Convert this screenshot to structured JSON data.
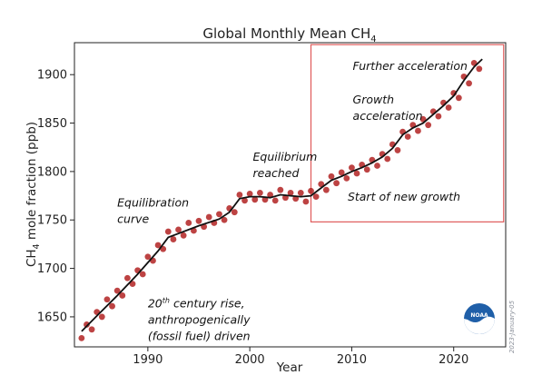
{
  "colors": {
    "monthly_points": "#b22222",
    "trend_line": "#111111",
    "highlight_box": "#e05a5a",
    "logo_blue": "#1f5fa8"
  },
  "logo": {
    "name": "noaa-logo",
    "text": "NOAA"
  },
  "credit": "2023-January-05",
  "chart_data": {
    "type": "line",
    "title": "Global Monthly Mean CH",
    "title_subscript": "4",
    "xlabel": "Year",
    "ylabel": "CH",
    "ylabel_subscript": "4",
    "ylabel_rest": " mole fraction (ppb)",
    "xlim": [
      1982.8,
      2025.1
    ],
    "ylim": [
      1619,
      1933
    ],
    "xticks": [
      1990,
      2000,
      2010,
      2020
    ],
    "yticks": [
      1650,
      1700,
      1750,
      1800,
      1850,
      1900
    ],
    "grid": false,
    "series": [
      {
        "name": "",
        "style": "points",
        "x": [
          1983.5,
          1984.0,
          1984.5,
          1985.0,
          1985.5,
          1986.0,
          1986.5,
          1987.0,
          1987.5,
          1988.0,
          1988.5,
          1989.0,
          1989.5,
          1990.0,
          1990.5,
          1991.0,
          1991.5,
          1992.0,
          1992.5,
          1993.0,
          1993.5,
          1994.0,
          1994.5,
          1995.0,
          1995.5,
          1996.0,
          1996.5,
          1997.0,
          1997.5,
          1998.0,
          1998.5,
          1999.0,
          1999.5,
          2000.0,
          2000.5,
          2001.0,
          2001.5,
          2002.0,
          2002.5,
          2003.0,
          2003.5,
          2004.0,
          2004.5,
          2005.0,
          2005.5,
          2006.0,
          2006.5,
          2007.0,
          2007.5,
          2008.0,
          2008.5,
          2009.0,
          2009.5,
          2010.0,
          2010.5,
          2011.0,
          2011.5,
          2012.0,
          2012.5,
          2013.0,
          2013.5,
          2014.0,
          2014.5,
          2015.0,
          2015.5,
          2016.0,
          2016.5,
          2017.0,
          2017.5,
          2018.0,
          2018.5,
          2019.0,
          2019.5,
          2020.0,
          2020.5,
          2021.0,
          2021.5,
          2022.0,
          2022.5
        ],
        "y": [
          1628,
          1642,
          1637,
          1655,
          1650,
          1668,
          1661,
          1677,
          1672,
          1690,
          1684,
          1698,
          1694,
          1712,
          1708,
          1724,
          1720,
          1738,
          1730,
          1740,
          1734,
          1747,
          1739,
          1749,
          1743,
          1753,
          1747,
          1756,
          1750,
          1762,
          1758,
          1776,
          1770,
          1777,
          1771,
          1778,
          1771,
          1776,
          1770,
          1781,
          1773,
          1778,
          1772,
          1778,
          1769,
          1780,
          1774,
          1787,
          1781,
          1795,
          1788,
          1799,
          1793,
          1804,
          1798,
          1807,
          1802,
          1812,
          1806,
          1818,
          1813,
          1828,
          1822,
          1841,
          1836,
          1848,
          1842,
          1854,
          1848,
          1862,
          1857,
          1871,
          1866,
          1881,
          1876,
          1898,
          1891,
          1912,
          1906
        ]
      },
      {
        "name": "",
        "style": "line",
        "x": [
          1983.5,
          1985,
          1987,
          1989,
          1991,
          1992,
          1993,
          1995,
          1997,
          1998,
          1999,
          2000,
          2001,
          2002,
          2003,
          2004,
          2005,
          2006,
          2007,
          2008,
          2009,
          2010,
          2011,
          2012,
          2013,
          2014,
          2015,
          2016,
          2017,
          2018,
          2019,
          2020,
          2021,
          2022,
          2022.8
        ],
        "y": [
          1635,
          1651,
          1672,
          1694,
          1718,
          1732,
          1736,
          1744,
          1751,
          1758,
          1772,
          1774,
          1774,
          1773,
          1776,
          1775,
          1774,
          1775,
          1783,
          1791,
          1795,
          1800,
          1804,
          1809,
          1815,
          1824,
          1838,
          1845,
          1850,
          1859,
          1868,
          1878,
          1894,
          1908,
          1916
        ]
      }
    ],
    "highlight_box": {
      "x": [
        2006.0,
        2024.9
      ],
      "y": [
        1748,
        1931
      ]
    },
    "annotations": [
      {
        "lines": [
          "Further acceleration"
        ],
        "x": 2010.1,
        "y": 1905
      },
      {
        "lines": [
          "Growth",
          "acceleration"
        ],
        "x": 2010.1,
        "y": 1870
      },
      {
        "lines": [
          "Equilibrium",
          "reached"
        ],
        "x": 2000.3,
        "y": 1811
      },
      {
        "lines": [
          "Start of new growth"
        ],
        "x": 2009.6,
        "y": 1770
      },
      {
        "lines": [
          "Equilibration",
          "curve"
        ],
        "x": 1987.0,
        "y": 1764
      },
      {
        "lines": [
          "20th century rise,",
          "anthropogenically",
          "(fossil fuel) driven"
        ],
        "x": 1990.0,
        "y": 1660
      }
    ]
  }
}
